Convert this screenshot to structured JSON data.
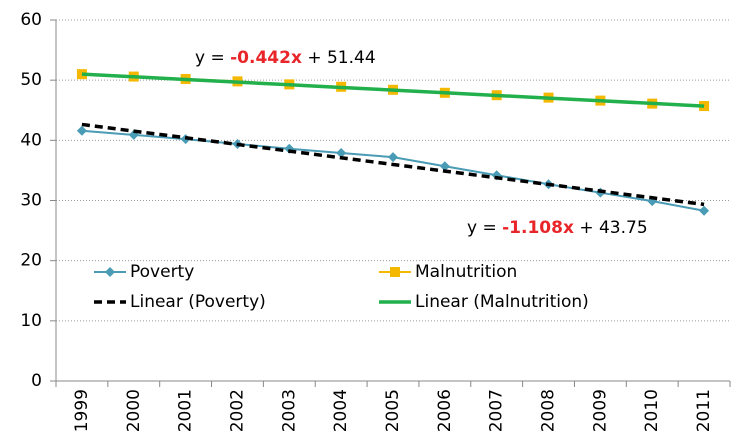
{
  "chart_data": {
    "type": "line",
    "categories": [
      "1999",
      "2000",
      "2001",
      "2002",
      "2003",
      "2004",
      "2005",
      "2006",
      "2007",
      "2008",
      "2009",
      "2010",
      "2011"
    ],
    "series": [
      {
        "name": "Poverty",
        "color": "#4a9bb5",
        "marker": "diamond",
        "values": [
          41.6,
          40.9,
          40.2,
          39.4,
          38.6,
          37.9,
          37.2,
          35.7,
          34.2,
          32.7,
          31.3,
          29.9,
          28.3
        ]
      },
      {
        "name": "Malnutrition",
        "color": "#f5b800",
        "marker": "square",
        "values": [
          51.0,
          50.6,
          50.2,
          49.8,
          49.3,
          48.9,
          48.4,
          47.9,
          47.5,
          47.1,
          46.6,
          46.1,
          45.7
        ]
      },
      {
        "name": "Linear (Poverty)",
        "color": "#000000",
        "dash": true,
        "values": [
          42.64,
          41.53,
          40.43,
          39.32,
          38.21,
          37.1,
          35.99,
          34.89,
          33.78,
          32.67,
          31.56,
          30.45,
          29.35
        ]
      },
      {
        "name": "Linear (Malnutrition)",
        "color": "#22b04c",
        "dash": false,
        "values": [
          51.0,
          50.56,
          50.11,
          49.67,
          49.23,
          48.79,
          48.35,
          47.9,
          47.46,
          47.02,
          46.58,
          46.14,
          45.69
        ]
      }
    ],
    "annotations": [
      {
        "prefix": "y = ",
        "coef": "-0.442x",
        "suffix": " + 51.44"
      },
      {
        "prefix": "y = ",
        "coef": "-1.108x",
        "suffix": " + 43.75"
      }
    ],
    "ylim": [
      0,
      60
    ],
    "yticks": [
      0,
      10,
      20,
      30,
      40,
      50,
      60
    ],
    "grid": true
  }
}
